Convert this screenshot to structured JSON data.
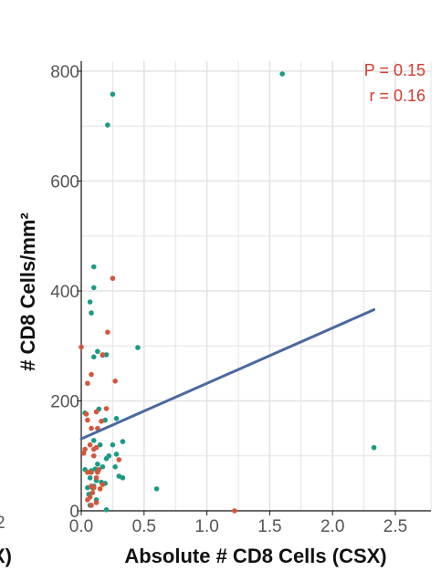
{
  "chart_data": {
    "type": "scatter",
    "xlabel": "Absolute # CD8 Cells (CSX)",
    "ylabel": "# CD8 Cells/mm²",
    "xlim": [
      0,
      2.6
    ],
    "ylim": [
      0,
      800
    ],
    "xticks": [
      "0.0",
      "0.5",
      "1.0",
      "1.5",
      "2.0",
      "2.5"
    ],
    "yticks": [
      "0",
      "200",
      "400",
      "600",
      "800"
    ],
    "grid": true,
    "annotations": {
      "p_value": "P = 0.15",
      "r_value": "r = 0.16"
    },
    "edge_fragments": {
      "tick": "2",
      "label": "X)"
    },
    "colors": {
      "teal": "#1a9a84",
      "orange": "#d3573a",
      "fit": "#4a68a0",
      "annot": "#d33a2c",
      "grid": "#e3e3e3"
    },
    "fit_line": {
      "x": [
        0.0,
        2.33
      ],
      "y": [
        131,
        366
      ]
    },
    "series": [
      {
        "color": "teal",
        "x": [
          0.25,
          0.21,
          1.6,
          0.1,
          0.1,
          0.07,
          0.08,
          0.17,
          0.2,
          0.1,
          0.13,
          0.45,
          0.14,
          0.03,
          0.19,
          0.28,
          0.1,
          0.15,
          0.25,
          0.33,
          0.28,
          0.2,
          0.22,
          0.03,
          0.08,
          0.11,
          0.13,
          0.17,
          0.3,
          0.07,
          0.12,
          0.16,
          0.19,
          0.6,
          0.05,
          0.09,
          0.07,
          0.12,
          0.2,
          2.33,
          0.27,
          0.33,
          0.06,
          0.1
        ],
        "y": [
          758,
          702,
          795,
          444,
          406,
          380,
          360,
          283,
          284,
          280,
          290,
          297,
          185,
          178,
          165,
          168,
          128,
          120,
          120,
          126,
          103,
          95,
          100,
          75,
          73,
          76,
          85,
          80,
          63,
          60,
          55,
          52,
          50,
          40,
          42,
          42,
          10,
          20,
          2,
          115,
          80,
          60,
          30,
          45
        ]
      },
      {
        "color": "orange",
        "x": [
          0.25,
          0.21,
          0.0,
          0.17,
          0.08,
          0.27,
          0.05,
          0.04,
          0.12,
          0.2,
          0.13,
          0.16,
          0.05,
          0.08,
          0.1,
          0.12,
          0.02,
          0.03,
          0.07,
          0.1,
          0.08,
          0.14,
          0.12,
          0.13,
          0.15,
          0.1,
          0.08,
          0.09,
          0.05,
          0.07,
          0.12,
          0.08,
          0.3,
          0.05,
          0.17,
          1.22
        ],
        "y": [
          423,
          325,
          298,
          284,
          248,
          236,
          232,
          176,
          180,
          186,
          150,
          163,
          165,
          150,
          112,
          115,
          105,
          112,
          120,
          100,
          70,
          75,
          60,
          70,
          40,
          42,
          45,
          33,
          20,
          25,
          15,
          10,
          93,
          70,
          48,
          0
        ]
      }
    ]
  }
}
